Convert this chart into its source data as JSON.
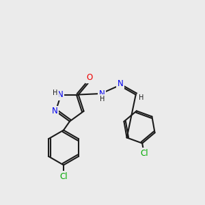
{
  "bg_color": "#ebebeb",
  "bond_color": "#1a1a1a",
  "atom_colors": {
    "N": "#0000ee",
    "O": "#ee0000",
    "Cl": "#00aa00",
    "C": "#1a1a1a",
    "H": "#1a1a1a"
  },
  "font_size_atom": 8.5,
  "font_size_small": 7.0
}
